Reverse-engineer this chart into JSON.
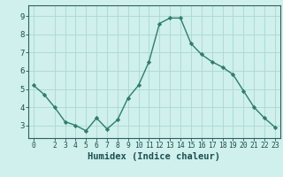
{
  "x": [
    0,
    1,
    2,
    3,
    4,
    5,
    6,
    7,
    8,
    9,
    10,
    11,
    12,
    13,
    14,
    15,
    16,
    17,
    18,
    19,
    20,
    21,
    22,
    23
  ],
  "y": [
    5.2,
    4.7,
    4.0,
    3.2,
    3.0,
    2.7,
    3.4,
    2.8,
    3.3,
    4.5,
    5.2,
    6.5,
    8.6,
    8.9,
    8.9,
    7.5,
    6.9,
    6.5,
    6.2,
    5.8,
    4.9,
    4.0,
    3.4,
    2.9
  ],
  "line_color": "#2e7d6e",
  "marker": "D",
  "marker_size": 2.2,
  "bg_color": "#cff0ec",
  "grid_color": "#aad8d3",
  "axis_color": "#2d6060",
  "xlabel": "Humidex (Indice chaleur)",
  "ylim": [
    2.3,
    9.6
  ],
  "xlim": [
    -0.5,
    23.5
  ],
  "yticks": [
    3,
    4,
    5,
    6,
    7,
    8,
    9
  ],
  "xticks": [
    0,
    2,
    3,
    4,
    5,
    6,
    7,
    8,
    9,
    10,
    11,
    12,
    13,
    14,
    15,
    16,
    17,
    18,
    19,
    20,
    21,
    22,
    23
  ],
  "tick_label_color": "#1a5050",
  "xlabel_fontsize": 7.5,
  "ytick_fontsize": 6.5,
  "xtick_fontsize": 5.8,
  "linewidth": 1.0
}
